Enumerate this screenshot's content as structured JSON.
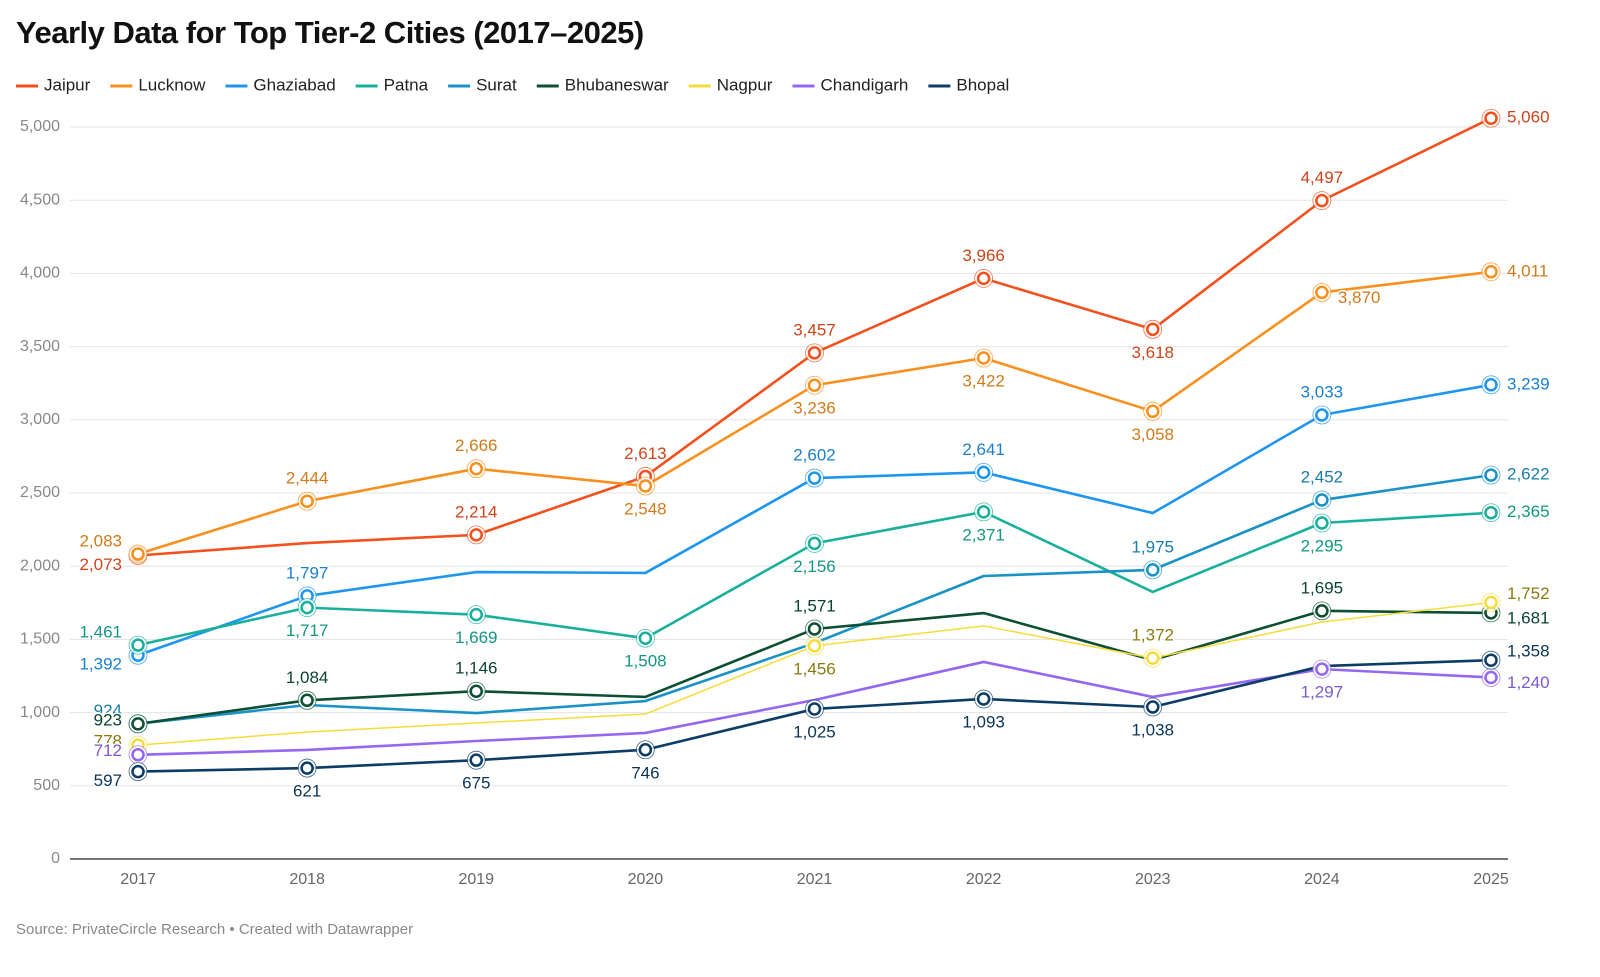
{
  "chart_data": {
    "type": "line",
    "title": "Yearly Data for Top Tier-2 Cities (2017–2025)",
    "source": "Source: PrivateCircle Research • Created with Datawrapper",
    "categories": [
      "2017",
      "2018",
      "2019",
      "2020",
      "2021",
      "2022",
      "2023",
      "2024",
      "2025"
    ],
    "ylim": [
      0,
      5000
    ],
    "yticks": [
      0,
      500,
      {
        "value": 1000,
        "label": "1,000"
      },
      {
        "value": 1500,
        "label": "1,500"
      },
      {
        "value": 2000,
        "label": "2,000"
      },
      {
        "value": 2500,
        "label": "2,500"
      },
      {
        "value": 3000,
        "label": "3,000"
      },
      {
        "value": 3500,
        "label": "3,500"
      },
      {
        "value": 4000,
        "label": "4,000"
      },
      {
        "value": 4500,
        "label": "4,500"
      },
      {
        "value": 5000,
        "label": "5,000"
      }
    ],
    "grid": true,
    "legend": "top",
    "series": [
      {
        "name": "Jaipur",
        "color": "#f2501d",
        "values": [
          2073,
          2158,
          2214,
          2613,
          3457,
          3966,
          3618,
          4497,
          5060
        ],
        "value_labels": [
          "2,073",
          null,
          "2,214",
          "2,613",
          "3,457",
          "3,966",
          "3,618",
          "4,497",
          "5,060"
        ]
      },
      {
        "name": "Lucknow",
        "color": "#f7901e",
        "values": [
          2083,
          2444,
          2666,
          2548,
          3236,
          3422,
          3058,
          3870,
          4011
        ],
        "value_labels": [
          "2,083",
          "2,444",
          "2,666",
          "2,548",
          "3,236",
          "3,422",
          "3,058",
          "3,870",
          "4,011"
        ]
      },
      {
        "name": "Ghaziabad",
        "color": "#1e96f0",
        "values": [
          1392,
          1797,
          1960,
          1954,
          2602,
          2641,
          2363,
          3033,
          3239
        ],
        "value_labels": [
          "1,392",
          "1,797",
          null,
          null,
          "2,602",
          "2,641",
          null,
          "3,033",
          "3,239"
        ]
      },
      {
        "name": "Patna",
        "color": "#18b09a",
        "values": [
          1461,
          1717,
          1669,
          1508,
          2156,
          2371,
          1824,
          2295,
          2365
        ],
        "value_labels": [
          "1,461",
          "1,717",
          "1,669",
          "1,508",
          "2,156",
          "2,371",
          null,
          "2,295",
          "2,365"
        ]
      },
      {
        "name": "Surat",
        "color": "#1a92c8",
        "values": [
          924,
          1052,
          997,
          1079,
          1475,
          1933,
          1975,
          2452,
          2622
        ],
        "value_labels": [
          "924",
          null,
          null,
          null,
          null,
          null,
          "1,975",
          "2,452",
          "2,622"
        ]
      },
      {
        "name": "Bhubaneswar",
        "color": "#0c4f32",
        "values": [
          923,
          1084,
          1146,
          1107,
          1571,
          1680,
          1359,
          1695,
          1681
        ],
        "value_labels": [
          "923",
          "1,084",
          "1,146",
          null,
          "1,571",
          null,
          null,
          "1,695",
          "1,681"
        ]
      },
      {
        "name": "Nagpur",
        "color": "#f5dc3a",
        "values": [
          778,
          867,
          929,
          990,
          1456,
          1592,
          1372,
          1619,
          1752
        ],
        "value_labels": [
          "778",
          null,
          null,
          null,
          "1,456",
          null,
          "1,372",
          null,
          "1,752"
        ]
      },
      {
        "name": "Chandigarh",
        "color": "#9467f0",
        "values": [
          712,
          745,
          806,
          861,
          1086,
          1346,
          1107,
          1297,
          1240
        ],
        "value_labels": [
          "712",
          null,
          null,
          null,
          null,
          null,
          null,
          "1,297",
          "1,240"
        ]
      },
      {
        "name": "Bhopal",
        "color": "#0d3d66",
        "values": [
          597,
          621,
          675,
          746,
          1025,
          1093,
          1038,
          1318,
          1358
        ],
        "value_labels": [
          "597",
          "621",
          "675",
          "746",
          "1,025",
          "1,093",
          "1,038",
          null,
          "1,358"
        ]
      }
    ]
  }
}
